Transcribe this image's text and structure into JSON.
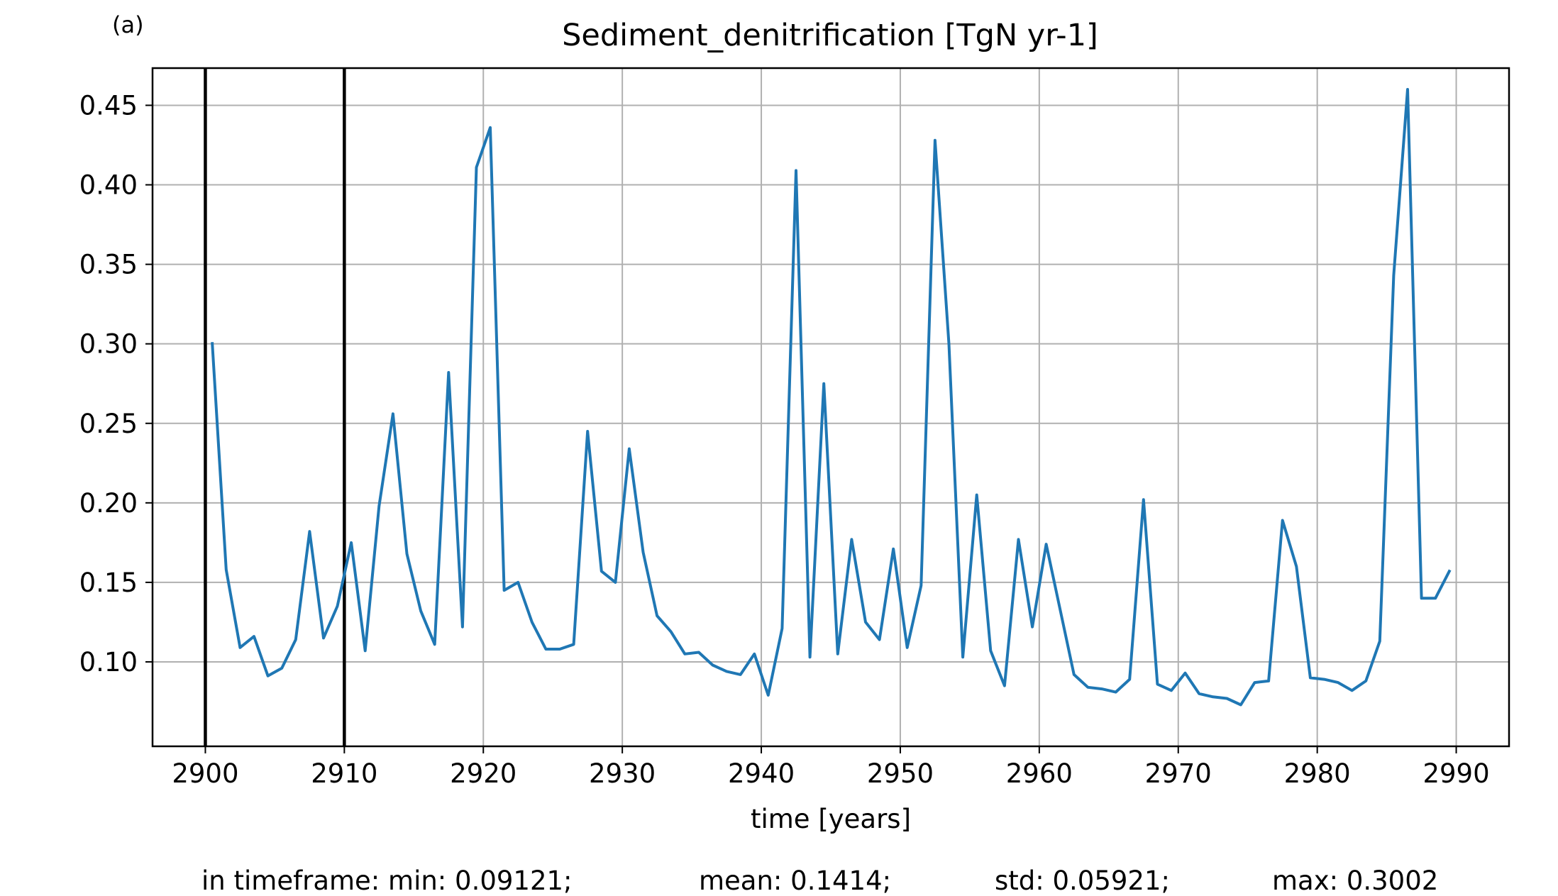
{
  "panel_label": "(a)",
  "chart_data": {
    "type": "line",
    "title": "Sediment_denitrification [TgN yr-1]",
    "xlabel": "time [years]",
    "ylabel": "",
    "xlim": [
      2896.2,
      2993.8
    ],
    "ylim": [
      0.0469,
      0.4734
    ],
    "xticks": [
      2900,
      2910,
      2920,
      2930,
      2940,
      2950,
      2960,
      2970,
      2980,
      2990
    ],
    "yticks": [
      0.1,
      0.15,
      0.2,
      0.25,
      0.3,
      0.35,
      0.4,
      0.45
    ],
    "ytick_labels": [
      "0.10",
      "0.15",
      "0.20",
      "0.25",
      "0.30",
      "0.35",
      "0.40",
      "0.45"
    ],
    "grid": true,
    "vlines": [
      2900,
      2910
    ],
    "series": [
      {
        "color": "#1f77b4",
        "x": [
          2900.5,
          2901.5,
          2902.5,
          2903.5,
          2904.5,
          2905.5,
          2906.5,
          2907.5,
          2908.5,
          2909.5,
          2910.5,
          2911.5,
          2912.5,
          2913.5,
          2914.5,
          2915.5,
          2916.5,
          2917.5,
          2918.5,
          2919.5,
          2920.5,
          2921.5,
          2922.5,
          2923.5,
          2924.5,
          2925.5,
          2926.5,
          2927.5,
          2928.5,
          2929.5,
          2930.5,
          2931.5,
          2932.5,
          2933.5,
          2934.5,
          2935.5,
          2936.5,
          2937.5,
          2938.5,
          2939.5,
          2940.5,
          2941.5,
          2942.5,
          2943.5,
          2944.5,
          2945.5,
          2946.5,
          2947.5,
          2948.5,
          2949.5,
          2950.5,
          2951.5,
          2952.5,
          2953.5,
          2954.5,
          2955.5,
          2956.5,
          2957.5,
          2958.5,
          2959.5,
          2960.5,
          2961.5,
          2962.5,
          2963.5,
          2964.5,
          2965.5,
          2966.5,
          2967.5,
          2968.5,
          2969.5,
          2970.5,
          2971.5,
          2972.5,
          2973.5,
          2974.5,
          2975.5,
          2976.5,
          2977.5,
          2978.5,
          2979.5,
          2980.5,
          2981.5,
          2982.5,
          2983.5,
          2984.5,
          2985.5,
          2986.5,
          2987.5,
          2988.5,
          2989.5
        ],
        "y": [
          0.3002,
          0.158,
          0.109,
          0.116,
          0.0912,
          0.096,
          0.114,
          0.182,
          0.115,
          0.135,
          0.175,
          0.107,
          0.198,
          0.256,
          0.168,
          0.132,
          0.111,
          0.282,
          0.122,
          0.411,
          0.436,
          0.145,
          0.15,
          0.125,
          0.108,
          0.108,
          0.111,
          0.245,
          0.157,
          0.15,
          0.234,
          0.169,
          0.129,
          0.119,
          0.105,
          0.106,
          0.098,
          0.094,
          0.092,
          0.105,
          0.079,
          0.121,
          0.409,
          0.103,
          0.275,
          0.105,
          0.177,
          0.125,
          0.114,
          0.171,
          0.109,
          0.148,
          0.428,
          0.3,
          0.103,
          0.205,
          0.107,
          0.085,
          0.177,
          0.122,
          0.174,
          0.133,
          0.092,
          0.084,
          0.083,
          0.081,
          0.089,
          0.202,
          0.086,
          0.082,
          0.093,
          0.08,
          0.078,
          0.077,
          0.073,
          0.087,
          0.088,
          0.189,
          0.16,
          0.09,
          0.089,
          0.087,
          0.082,
          0.088,
          0.113,
          0.343,
          0.46,
          0.14,
          0.14,
          0.157
        ]
      }
    ]
  },
  "stats": {
    "min": "in timeframe: min: 0.09121;",
    "mean": "mean: 0.1414;",
    "std": "std: 0.05921;",
    "max": "max: 0.3002"
  }
}
